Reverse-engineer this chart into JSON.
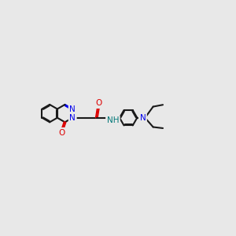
{
  "background_color": "#e8e8e8",
  "bond_color": "#1a1a1a",
  "N_color": "#0000ee",
  "O_color": "#dd0000",
  "NH_color": "#007777",
  "font_size": 7.0,
  "line_width": 1.5,
  "double_sep": 0.035,
  "ring_r": 0.38,
  "figsize": [
    3.0,
    3.0
  ],
  "dpi": 100,
  "xlim": [
    0,
    10
  ],
  "ylim": [
    0,
    10
  ]
}
